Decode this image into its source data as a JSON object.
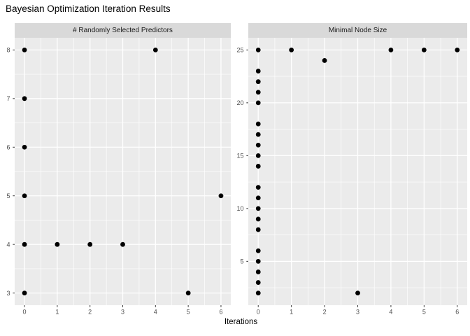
{
  "title": "Bayesian Optimization Iteration Results",
  "xlabel": "Iterations",
  "colors": {
    "background": "#FFFFFF",
    "panel_bg": "#EBEBEB",
    "strip_bg": "#D9D9D9",
    "grid_major": "#FFFFFF",
    "grid_minor": "#FFFFFF",
    "point": "#000000",
    "tick_mark": "#333333",
    "tick_label": "#4D4D4D",
    "strip_text": "#1A1A1A",
    "title_text": "#000000"
  },
  "chart_data": [
    {
      "type": "scatter",
      "facet": "# Randomly Selected Predictors",
      "x_ticks": [
        0,
        1,
        2,
        3,
        4,
        5,
        6
      ],
      "y_ticks": [
        3,
        4,
        5,
        6,
        7,
        8
      ],
      "xlim": [
        -0.3,
        6.3
      ],
      "ylim": [
        2.75,
        8.25
      ],
      "grid": true,
      "points": [
        [
          0,
          3
        ],
        [
          0,
          4
        ],
        [
          0,
          5
        ],
        [
          0,
          6
        ],
        [
          0,
          7
        ],
        [
          0,
          8
        ],
        [
          1,
          4
        ],
        [
          2,
          4
        ],
        [
          3,
          4
        ],
        [
          4,
          8
        ],
        [
          5,
          3
        ],
        [
          6,
          5
        ]
      ]
    },
    {
      "type": "scatter",
      "facet": "Minimal Node Size",
      "x_ticks": [
        0,
        1,
        2,
        3,
        4,
        5,
        6
      ],
      "y_ticks": [
        5,
        10,
        15,
        20,
        25
      ],
      "xlim": [
        -0.3,
        6.3
      ],
      "ylim": [
        0.85,
        26.15
      ],
      "grid": true,
      "points": [
        [
          0,
          2
        ],
        [
          0,
          3
        ],
        [
          0,
          4
        ],
        [
          0,
          5
        ],
        [
          0,
          6
        ],
        [
          0,
          8
        ],
        [
          0,
          9
        ],
        [
          0,
          10
        ],
        [
          0,
          11
        ],
        [
          0,
          12
        ],
        [
          0,
          14
        ],
        [
          0,
          15
        ],
        [
          0,
          16
        ],
        [
          0,
          17
        ],
        [
          0,
          18
        ],
        [
          0,
          20
        ],
        [
          0,
          21
        ],
        [
          0,
          22
        ],
        [
          0,
          23
        ],
        [
          0,
          25
        ],
        [
          1,
          25
        ],
        [
          2,
          24
        ],
        [
          3,
          2
        ],
        [
          4,
          25
        ],
        [
          5,
          25
        ],
        [
          6,
          25
        ]
      ]
    }
  ]
}
